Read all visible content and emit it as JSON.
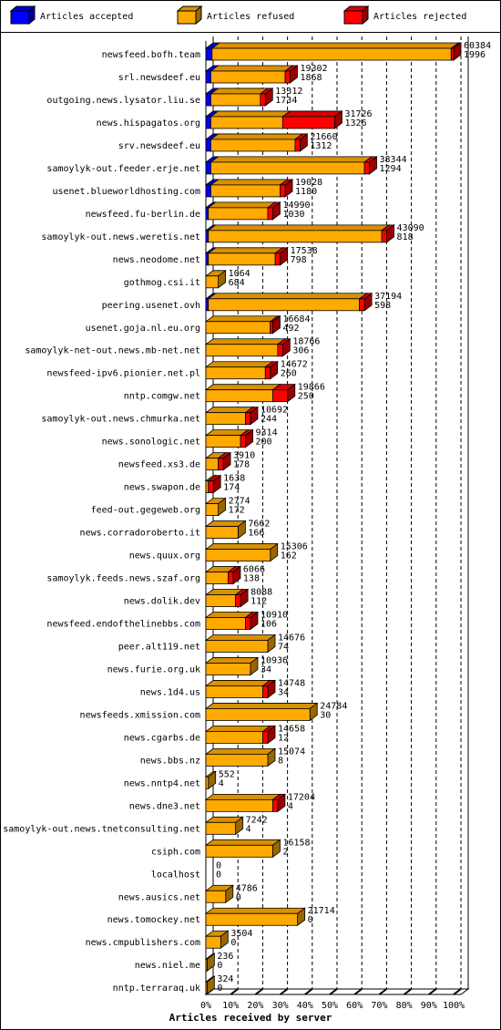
{
  "chart_data": {
    "type": "bar",
    "orientation": "horizontal",
    "stacked": true,
    "xlabel": "Articles received by server",
    "categories": [
      "newsfeed.bofh.team",
      "srl.newsdeef.eu",
      "outgoing.news.lysator.liu.se",
      "news.hispagatos.org",
      "srv.newsdeef.eu",
      "samoylyk-out.feeder.erje.net",
      "usenet.blueworldhosting.com",
      "newsfeed.fu-berlin.de",
      "samoylyk-out.news.weretis.net",
      "news.neodome.net",
      "gothmog.csi.it",
      "peering.usenet.ovh",
      "usenet.goja.nl.eu.org",
      "samoylyk-net-out.news.mb-net.net",
      "newsfeed-ipv6.pionier.net.pl",
      "nntp.comgw.net",
      "samoylyk-out.news.chmurka.net",
      "news.sonologic.net",
      "newsfeed.xs3.de",
      "news.swapon.de",
      "feed-out.gegeweb.org",
      "news.corradoroberto.it",
      "news.quux.org",
      "samoylyk.feeds.news.szaf.org",
      "news.dolik.dev",
      "newsfeed.endofthelinebbs.com",
      "peer.alt119.net",
      "news.furie.org.uk",
      "news.1d4.us",
      "newsfeeds.xmission.com",
      "news.cgarbs.de",
      "news.bbs.nz",
      "news.nntp4.net",
      "news.dne3.net",
      "samoylyk-out.news.tnetconsulting.net",
      "csiph.com",
      "localhost",
      "news.ausics.net",
      "news.tomockey.net",
      "news.cmpublishers.com",
      "news.niel.me",
      "nntp.terraraq.uk"
    ],
    "series": [
      {
        "name": "Articles accepted",
        "color": "#0000ff",
        "values": [
          2.5,
          2,
          2,
          2,
          2,
          2,
          2,
          1,
          1,
          1,
          0,
          1,
          0,
          0,
          0,
          0,
          0,
          0,
          0,
          0,
          0,
          0,
          0,
          0,
          0,
          0,
          0,
          0,
          0,
          0,
          0,
          0,
          0,
          0,
          0,
          0,
          0,
          0,
          0,
          0,
          0,
          0
        ]
      },
      {
        "name": "Articles refused",
        "color": "#ffaa00",
        "values": [
          96.5,
          30,
          20,
          29,
          34,
          62,
          28,
          24,
          70,
          27,
          5,
          61,
          26,
          29,
          24,
          27,
          16,
          14,
          5,
          1,
          5,
          13,
          26,
          9,
          12,
          16,
          25,
          18,
          23,
          42,
          23,
          25,
          1,
          27,
          12,
          27,
          0,
          8,
          37,
          6,
          0.5,
          0.5
        ]
      },
      {
        "name": "Articles rejected",
        "color": "#ff0000",
        "values": [
          1,
          2,
          2,
          21,
          2,
          2,
          2,
          2,
          2,
          2,
          0,
          2,
          1,
          2,
          2,
          6,
          2,
          2,
          2,
          2,
          0,
          0,
          0,
          2,
          2,
          2,
          0,
          0,
          2,
          0,
          2,
          0,
          0,
          2,
          0,
          0,
          0,
          0,
          0,
          0,
          0,
          0
        ]
      }
    ],
    "annotations": [
      [
        60384,
        1996
      ],
      [
        19302,
        1868
      ],
      [
        13312,
        1734
      ],
      [
        31726,
        1326
      ],
      [
        21660,
        1312
      ],
      [
        38344,
        1294
      ],
      [
        19028,
        1180
      ],
      [
        14990,
        1030
      ],
      [
        43090,
        818
      ],
      [
        17538,
        798
      ],
      [
        1064,
        684
      ],
      [
        37194,
        598
      ],
      [
        16684,
        492
      ],
      [
        18766,
        306
      ],
      [
        14672,
        260
      ],
      [
        19866,
        250
      ],
      [
        10692,
        244
      ],
      [
        9314,
        200
      ],
      [
        3910,
        178
      ],
      [
        1638,
        174
      ],
      [
        2774,
        172
      ],
      [
        7662,
        166
      ],
      [
        15306,
        162
      ],
      [
        6066,
        138
      ],
      [
        8088,
        112
      ],
      [
        10910,
        106
      ],
      [
        14676,
        74
      ],
      [
        10936,
        34
      ],
      [
        14748,
        34
      ],
      [
        24784,
        30
      ],
      [
        14658,
        12
      ],
      [
        15074,
        8
      ],
      [
        552,
        4
      ],
      [
        17204,
        4
      ],
      [
        7242,
        4
      ],
      [
        16158,
        2
      ],
      [
        0,
        0
      ],
      [
        4786,
        0
      ],
      [
        21714,
        0
      ],
      [
        3504,
        0
      ],
      [
        236,
        0
      ],
      [
        324,
        0
      ]
    ],
    "xlim": [
      0,
      100
    ],
    "xticks": [
      {
        "value": 0,
        "label": "0%"
      },
      {
        "value": 10,
        "label": "10%"
      },
      {
        "value": 20,
        "label": "20%"
      },
      {
        "value": 30,
        "label": "30%"
      },
      {
        "value": 40,
        "label": "40%"
      },
      {
        "value": 50,
        "label": "50%"
      },
      {
        "value": 60,
        "label": "60%"
      },
      {
        "value": 70,
        "label": "70%"
      },
      {
        "value": 80,
        "label": "80%"
      },
      {
        "value": 90,
        "label": "90%"
      },
      {
        "value": 100,
        "label": "100%"
      }
    ],
    "grid": true
  }
}
